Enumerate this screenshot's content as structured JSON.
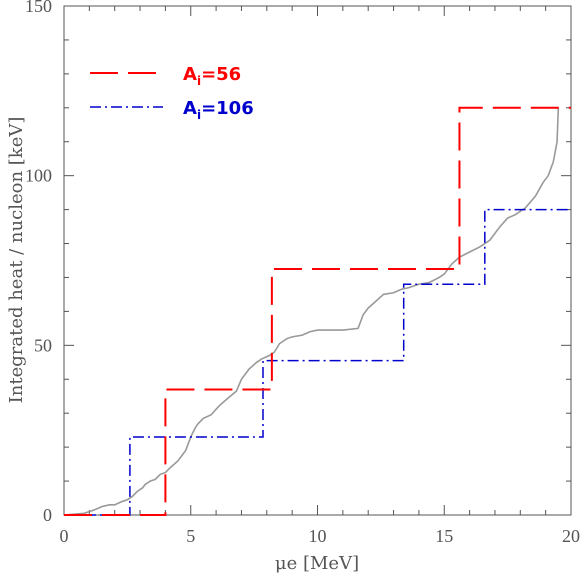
{
  "chart_data": {
    "type": "line",
    "xlabel": "μe [MeV]",
    "ylabel": "Integrated heat / nucleon [keV]",
    "xlim": [
      0,
      20
    ],
    "ylim": [
      0,
      150
    ],
    "xticks": [
      "0",
      "5",
      "10",
      "15",
      "20"
    ],
    "yticks": [
      "0",
      "50",
      "100",
      "150"
    ],
    "legend_position": "top-left",
    "series": [
      {
        "name": "Ai=56",
        "legend_main": "A",
        "legend_sub": "i",
        "legend_rest": "=56",
        "color": "#ff0000",
        "style": "dashed",
        "x": [
          0,
          4.0,
          4.0,
          8.2,
          8.2,
          15.6,
          15.6,
          20
        ],
        "y": [
          0,
          0,
          37,
          37,
          72.5,
          72.5,
          120,
          120
        ]
      },
      {
        "name": "Ai=106",
        "legend_main": "A",
        "legend_sub": "i",
        "legend_rest": "=106",
        "color": "#0000cc",
        "style": "dashdot",
        "x": [
          0,
          2.6,
          2.6,
          7.85,
          7.85,
          13.4,
          13.4,
          16.6,
          16.6,
          20
        ],
        "y": [
          0,
          0,
          23,
          23,
          45.5,
          45.5,
          68,
          68,
          90,
          90
        ]
      },
      {
        "name": "",
        "color": "#999999",
        "style": "solid",
        "x": [
          0,
          0.8,
          1.2,
          1.5,
          1.8,
          2.0,
          2.3,
          2.5,
          2.7,
          2.9,
          3.1,
          3.2,
          3.4,
          3.6,
          3.8,
          4.0,
          4.2,
          4.5,
          4.8,
          5.0,
          5.2,
          5.3,
          5.5,
          5.8,
          6.1,
          6.4,
          6.8,
          7.0,
          7.3,
          7.6,
          7.8,
          8.1,
          8.3,
          8.5,
          8.8,
          9.0,
          9.4,
          9.7,
          10.0,
          10.5,
          11.0,
          11.6,
          11.8,
          12.0,
          12.3,
          12.6,
          13.0,
          13.3,
          13.6,
          14.0,
          14.4,
          14.8,
          15.0,
          15.3,
          15.6,
          16.0,
          16.4,
          16.8,
          17.2,
          17.5,
          17.8,
          18.2,
          18.6,
          18.9,
          19.1,
          19.3,
          19.45,
          19.5
        ],
        "y": [
          0,
          0.5,
          1.5,
          2.5,
          3,
          3,
          4,
          4.5,
          5.5,
          7,
          8,
          9,
          10,
          10.5,
          12,
          12.5,
          14,
          16,
          19,
          23,
          26,
          27,
          28.5,
          29.5,
          32,
          34,
          36.5,
          40,
          43,
          45,
          46,
          47,
          48,
          50.5,
          52,
          52.5,
          53,
          54,
          54.5,
          54.5,
          54.5,
          55,
          59,
          61,
          63,
          65,
          65.5,
          66.5,
          67,
          68,
          68.5,
          70,
          71,
          74,
          76,
          77.5,
          79,
          81,
          85,
          87.5,
          88.5,
          90.5,
          94,
          98,
          100,
          104,
          110,
          120
        ]
      }
    ]
  }
}
